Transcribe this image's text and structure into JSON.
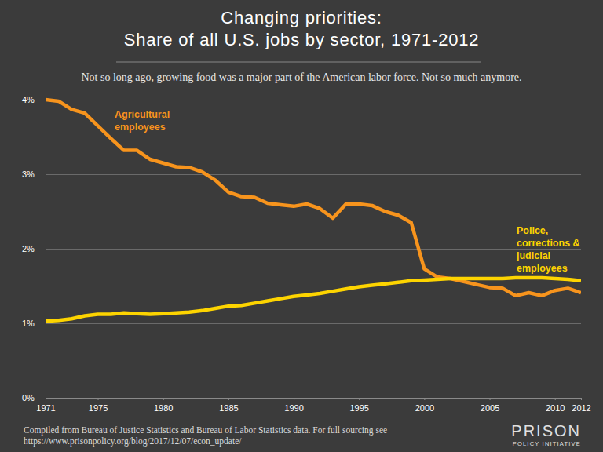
{
  "chart_data": {
    "type": "line",
    "title": [
      "Changing priorities:",
      "Share of all U.S. jobs by sector, 1971-2012"
    ],
    "subtitle": "Not so long ago, growing food was a major part of the American labor force. Not so much anymore.",
    "notes": [
      "Compiled from Bureau of Justice Statistics and Bureau of Labor Statistics data.  For full sourcing see",
      "https://www.prisonpolicy.org/blog/2017/12/07/econ_update/"
    ],
    "logo": [
      "PRISON",
      "POLICY INITIATIVE"
    ],
    "x": [
      1971,
      1972,
      1973,
      1974,
      1975,
      1976,
      1977,
      1978,
      1979,
      1980,
      1981,
      1982,
      1983,
      1984,
      1985,
      1986,
      1987,
      1988,
      1989,
      1990,
      1991,
      1992,
      1993,
      1994,
      1995,
      1996,
      1997,
      1998,
      1999,
      2000,
      2001,
      2002,
      2003,
      2004,
      2005,
      2006,
      2007,
      2008,
      2009,
      2010,
      2011,
      2012
    ],
    "series": [
      {
        "name": "Agricultural employees",
        "color": "#f7941d",
        "values": [
          4.0,
          3.98,
          3.87,
          3.82,
          3.65,
          3.48,
          3.32,
          3.32,
          3.2,
          3.15,
          3.1,
          3.09,
          3.03,
          2.92,
          2.76,
          2.7,
          2.69,
          2.61,
          2.59,
          2.57,
          2.6,
          2.54,
          2.41,
          2.6,
          2.6,
          2.58,
          2.5,
          2.45,
          2.35,
          1.73,
          1.62,
          1.6,
          1.56,
          1.52,
          1.48,
          1.47,
          1.37,
          1.41,
          1.37,
          1.44,
          1.47,
          1.41
        ]
      },
      {
        "name": "Police, corrections & judicial employees",
        "color": "#fdd400",
        "values": [
          1.03,
          1.04,
          1.06,
          1.1,
          1.12,
          1.12,
          1.14,
          1.13,
          1.12,
          1.13,
          1.14,
          1.15,
          1.17,
          1.2,
          1.23,
          1.24,
          1.27,
          1.3,
          1.33,
          1.36,
          1.38,
          1.4,
          1.43,
          1.46,
          1.49,
          1.51,
          1.53,
          1.55,
          1.57,
          1.58,
          1.59,
          1.6,
          1.6,
          1.6,
          1.6,
          1.6,
          1.61,
          1.61,
          1.61,
          1.6,
          1.59,
          1.57
        ]
      }
    ],
    "xlim": [
      1971,
      2012
    ],
    "xticks": [
      1971,
      1975,
      1980,
      1985,
      1990,
      1995,
      2000,
      2005,
      2010,
      2012
    ],
    "ylim": [
      0,
      4
    ],
    "yticks": [
      {
        "value": 0,
        "label": "0%"
      },
      {
        "value": 1,
        "label": "1%"
      },
      {
        "value": 2,
        "label": "2%"
      },
      {
        "value": 3,
        "label": "3%"
      },
      {
        "value": 4,
        "label": "4%"
      }
    ],
    "grid": true
  }
}
